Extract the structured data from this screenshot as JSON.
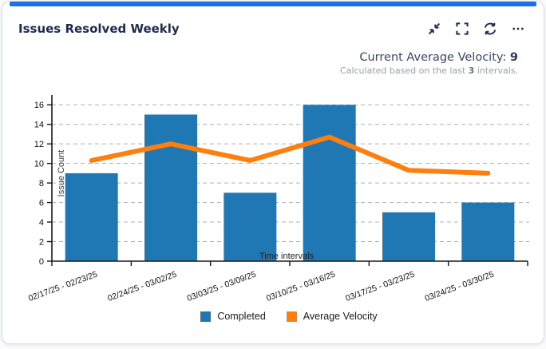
{
  "card": {
    "title": "Issues Resolved Weekly",
    "accent_color": "#1e6fe8",
    "icon_color": "#1d2d50",
    "toolbar_icons": [
      "collapse-icon",
      "fullscreen-icon",
      "refresh-icon",
      "more-icon"
    ]
  },
  "velocity": {
    "label": "Current Average Velocity: ",
    "value": "9",
    "note_prefix": "Calculated based on the last ",
    "note_value": "3",
    "note_suffix": " intervals."
  },
  "chart_data": {
    "type": "bar",
    "categories": [
      "02/17/25 - 02/23/25",
      "02/24/25 - 03/02/25",
      "03/03/25 - 03/09/25",
      "03/10/25 - 03/16/25",
      "03/17/25 - 03/23/25",
      "03/24/25 - 03/30/25"
    ],
    "series": [
      {
        "name": "Completed",
        "type": "bar",
        "color": "#1f77b4",
        "values": [
          9,
          15,
          7,
          16,
          5,
          6
        ]
      },
      {
        "name": "Average Velocity",
        "type": "line",
        "color": "#ff7f0e",
        "values": [
          10.3,
          12,
          10.3,
          12.7,
          9.3,
          9
        ]
      }
    ],
    "xlabel": "Time intervals",
    "ylabel": "Issue Count",
    "ylim": [
      0,
      17
    ],
    "yticks": [
      0,
      2,
      4,
      6,
      8,
      10,
      12,
      14,
      16
    ],
    "grid": true,
    "grid_style": "dashed",
    "legend_position": "bottom"
  }
}
